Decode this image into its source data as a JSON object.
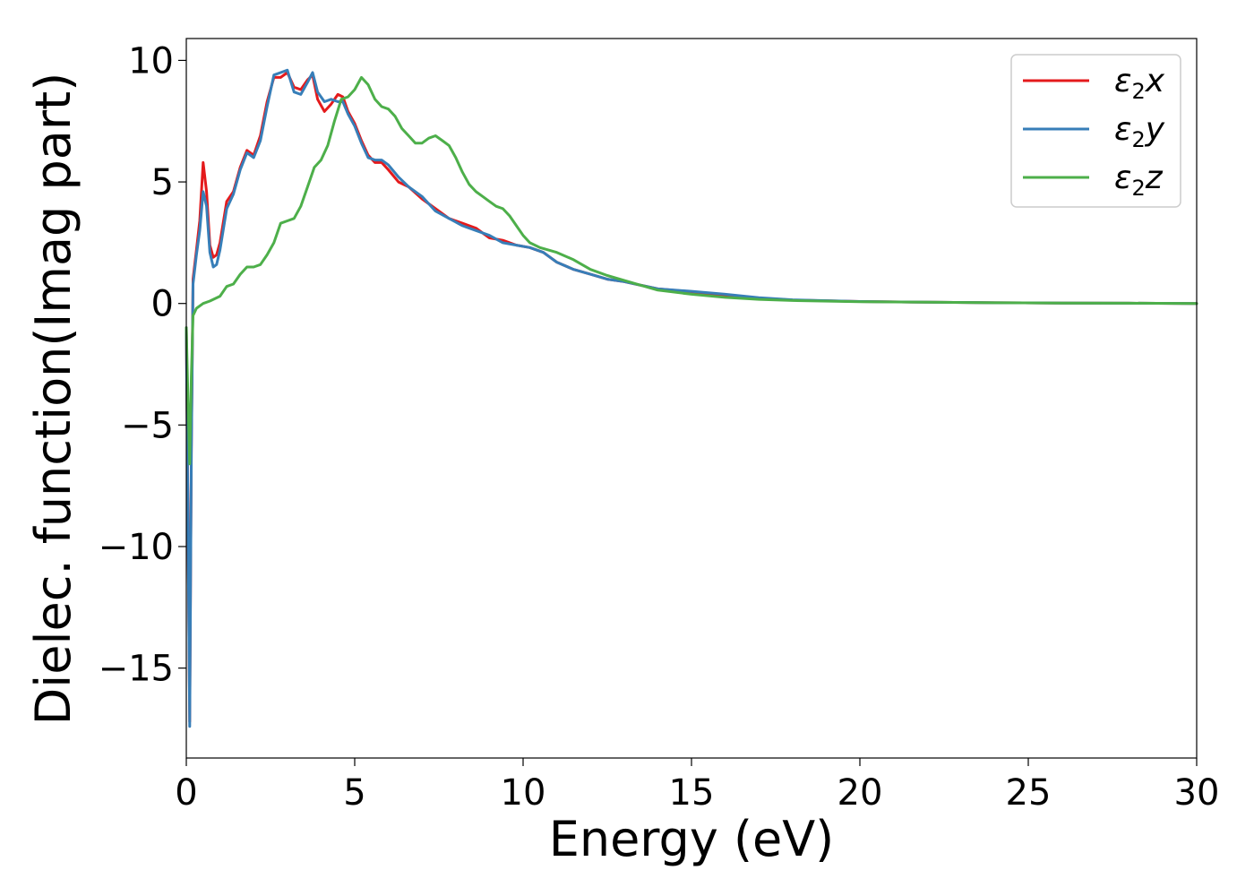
{
  "chart_data": {
    "type": "line",
    "title": "",
    "xlabel": "Energy (eV)",
    "ylabel": "Dielec. function(Imag part)",
    "xlim": [
      0,
      30
    ],
    "ylim": [
      -18.7,
      10.9
    ],
    "xticks": [
      0,
      5,
      10,
      15,
      20,
      25,
      30
    ],
    "yticks": [
      -15,
      -10,
      -5,
      0,
      5,
      10
    ],
    "xtick_labels": [
      "0",
      "5",
      "10",
      "15",
      "20",
      "25",
      "30"
    ],
    "ytick_labels": [
      "−15",
      "−10",
      "−5",
      "0",
      "5",
      "10"
    ],
    "grid": false,
    "legend_position": "top-right",
    "series": [
      {
        "name": "ε2x",
        "legend_base": "ε",
        "legend_sub": "2",
        "legend_suffix": "x",
        "color": "#e41a1c",
        "x": [
          0,
          0.05,
          0.1,
          0.15,
          0.2,
          0.3,
          0.4,
          0.5,
          0.6,
          0.7,
          0.8,
          0.9,
          1.0,
          1.2,
          1.4,
          1.6,
          1.8,
          2.0,
          2.2,
          2.4,
          2.6,
          2.8,
          3.0,
          3.2,
          3.4,
          3.6,
          3.75,
          3.9,
          4.1,
          4.3,
          4.5,
          4.65,
          4.8,
          5.0,
          5.2,
          5.4,
          5.6,
          5.8,
          6.0,
          6.3,
          6.6,
          7.0,
          7.4,
          7.8,
          8.2,
          8.6,
          9.0,
          9.4,
          9.8,
          10.2,
          10.6,
          11.0,
          11.5,
          12.0,
          12.5,
          13.0,
          13.5,
          14.0,
          15.0,
          16.0,
          17.0,
          18.0,
          20.0,
          22.0,
          24.0,
          26.0,
          28.0,
          30.0
        ],
        "y": [
          -1.0,
          -9.0,
          -17.2,
          -6.0,
          1.0,
          2.2,
          3.4,
          5.8,
          4.6,
          2.4,
          1.9,
          2.0,
          2.5,
          4.2,
          4.6,
          5.6,
          6.3,
          6.1,
          6.9,
          8.3,
          9.3,
          9.3,
          9.5,
          8.9,
          8.8,
          9.2,
          9.4,
          8.4,
          7.9,
          8.2,
          8.6,
          8.5,
          7.9,
          7.4,
          6.7,
          6.1,
          5.8,
          5.8,
          5.5,
          5.0,
          4.8,
          4.3,
          3.9,
          3.5,
          3.3,
          3.1,
          2.7,
          2.6,
          2.4,
          2.3,
          2.1,
          1.7,
          1.4,
          1.2,
          1.0,
          0.9,
          0.75,
          0.6,
          0.48,
          0.35,
          0.22,
          0.14,
          0.08,
          0.05,
          0.03,
          0.02,
          0.01,
          0.0
        ]
      },
      {
        "name": "ε2y",
        "legend_base": "ε",
        "legend_sub": "2",
        "legend_suffix": "y",
        "color": "#377eb8",
        "x": [
          0,
          0.05,
          0.1,
          0.15,
          0.2,
          0.3,
          0.4,
          0.5,
          0.6,
          0.7,
          0.8,
          0.9,
          1.0,
          1.2,
          1.4,
          1.6,
          1.8,
          2.0,
          2.2,
          2.4,
          2.6,
          2.8,
          3.0,
          3.2,
          3.4,
          3.6,
          3.75,
          3.9,
          4.1,
          4.3,
          4.5,
          4.65,
          4.8,
          5.0,
          5.2,
          5.4,
          5.6,
          5.8,
          6.0,
          6.3,
          6.6,
          7.0,
          7.4,
          7.8,
          8.2,
          8.6,
          9.0,
          9.4,
          9.8,
          10.2,
          10.6,
          11.0,
          11.5,
          12.0,
          12.5,
          13.0,
          13.5,
          14.0,
          15.0,
          16.0,
          17.0,
          18.0,
          20.0,
          22.0,
          24.0,
          26.0,
          28.0,
          30.0
        ],
        "y": [
          -1.0,
          -9.0,
          -17.4,
          -6.2,
          0.8,
          2.0,
          3.0,
          4.6,
          4.0,
          2.1,
          1.5,
          1.6,
          2.2,
          3.9,
          4.5,
          5.5,
          6.2,
          6.0,
          6.7,
          8.1,
          9.4,
          9.5,
          9.6,
          8.7,
          8.6,
          9.1,
          9.5,
          8.7,
          8.3,
          8.4,
          8.3,
          8.3,
          7.8,
          7.3,
          6.6,
          6.0,
          5.9,
          5.9,
          5.7,
          5.2,
          4.8,
          4.4,
          3.8,
          3.5,
          3.2,
          3.0,
          2.8,
          2.5,
          2.4,
          2.3,
          2.1,
          1.7,
          1.4,
          1.2,
          1.0,
          0.9,
          0.75,
          0.6,
          0.5,
          0.38,
          0.24,
          0.15,
          0.08,
          0.05,
          0.03,
          0.02,
          0.01,
          0.0
        ]
      },
      {
        "name": "ε2z",
        "legend_base": "ε",
        "legend_sub": "2",
        "legend_suffix": "z",
        "color": "#4daf4a",
        "x": [
          0,
          0.05,
          0.1,
          0.15,
          0.2,
          0.3,
          0.5,
          0.7,
          1.0,
          1.2,
          1.4,
          1.6,
          1.8,
          2.0,
          2.2,
          2.4,
          2.6,
          2.8,
          3.0,
          3.2,
          3.4,
          3.6,
          3.8,
          4.0,
          4.2,
          4.4,
          4.6,
          4.8,
          5.0,
          5.2,
          5.4,
          5.6,
          5.8,
          6.0,
          6.2,
          6.4,
          6.6,
          6.8,
          7.0,
          7.2,
          7.4,
          7.6,
          7.8,
          8.0,
          8.2,
          8.4,
          8.6,
          8.8,
          9.0,
          9.2,
          9.4,
          9.6,
          9.8,
          10.0,
          10.2,
          10.5,
          11.0,
          11.5,
          12.0,
          12.5,
          13.0,
          13.5,
          14.0,
          15.0,
          16.0,
          17.0,
          18.0,
          20.0,
          22.0,
          24.0,
          26.0,
          28.0,
          30.0
        ],
        "y": [
          -1.0,
          -4.0,
          -6.6,
          -3.0,
          -0.5,
          -0.2,
          0.0,
          0.1,
          0.3,
          0.7,
          0.8,
          1.2,
          1.5,
          1.5,
          1.6,
          2.0,
          2.5,
          3.3,
          3.4,
          3.5,
          4.0,
          4.8,
          5.6,
          5.9,
          6.5,
          7.5,
          8.4,
          8.5,
          8.8,
          9.3,
          9.0,
          8.4,
          8.1,
          8.0,
          7.7,
          7.2,
          6.9,
          6.6,
          6.6,
          6.8,
          6.9,
          6.7,
          6.5,
          6.0,
          5.4,
          4.9,
          4.6,
          4.4,
          4.2,
          4.0,
          3.9,
          3.6,
          3.2,
          2.8,
          2.5,
          2.3,
          2.1,
          1.8,
          1.4,
          1.15,
          0.95,
          0.75,
          0.55,
          0.38,
          0.25,
          0.17,
          0.12,
          0.07,
          0.05,
          0.03,
          0.02,
          0.01,
          0.0
        ]
      }
    ]
  }
}
